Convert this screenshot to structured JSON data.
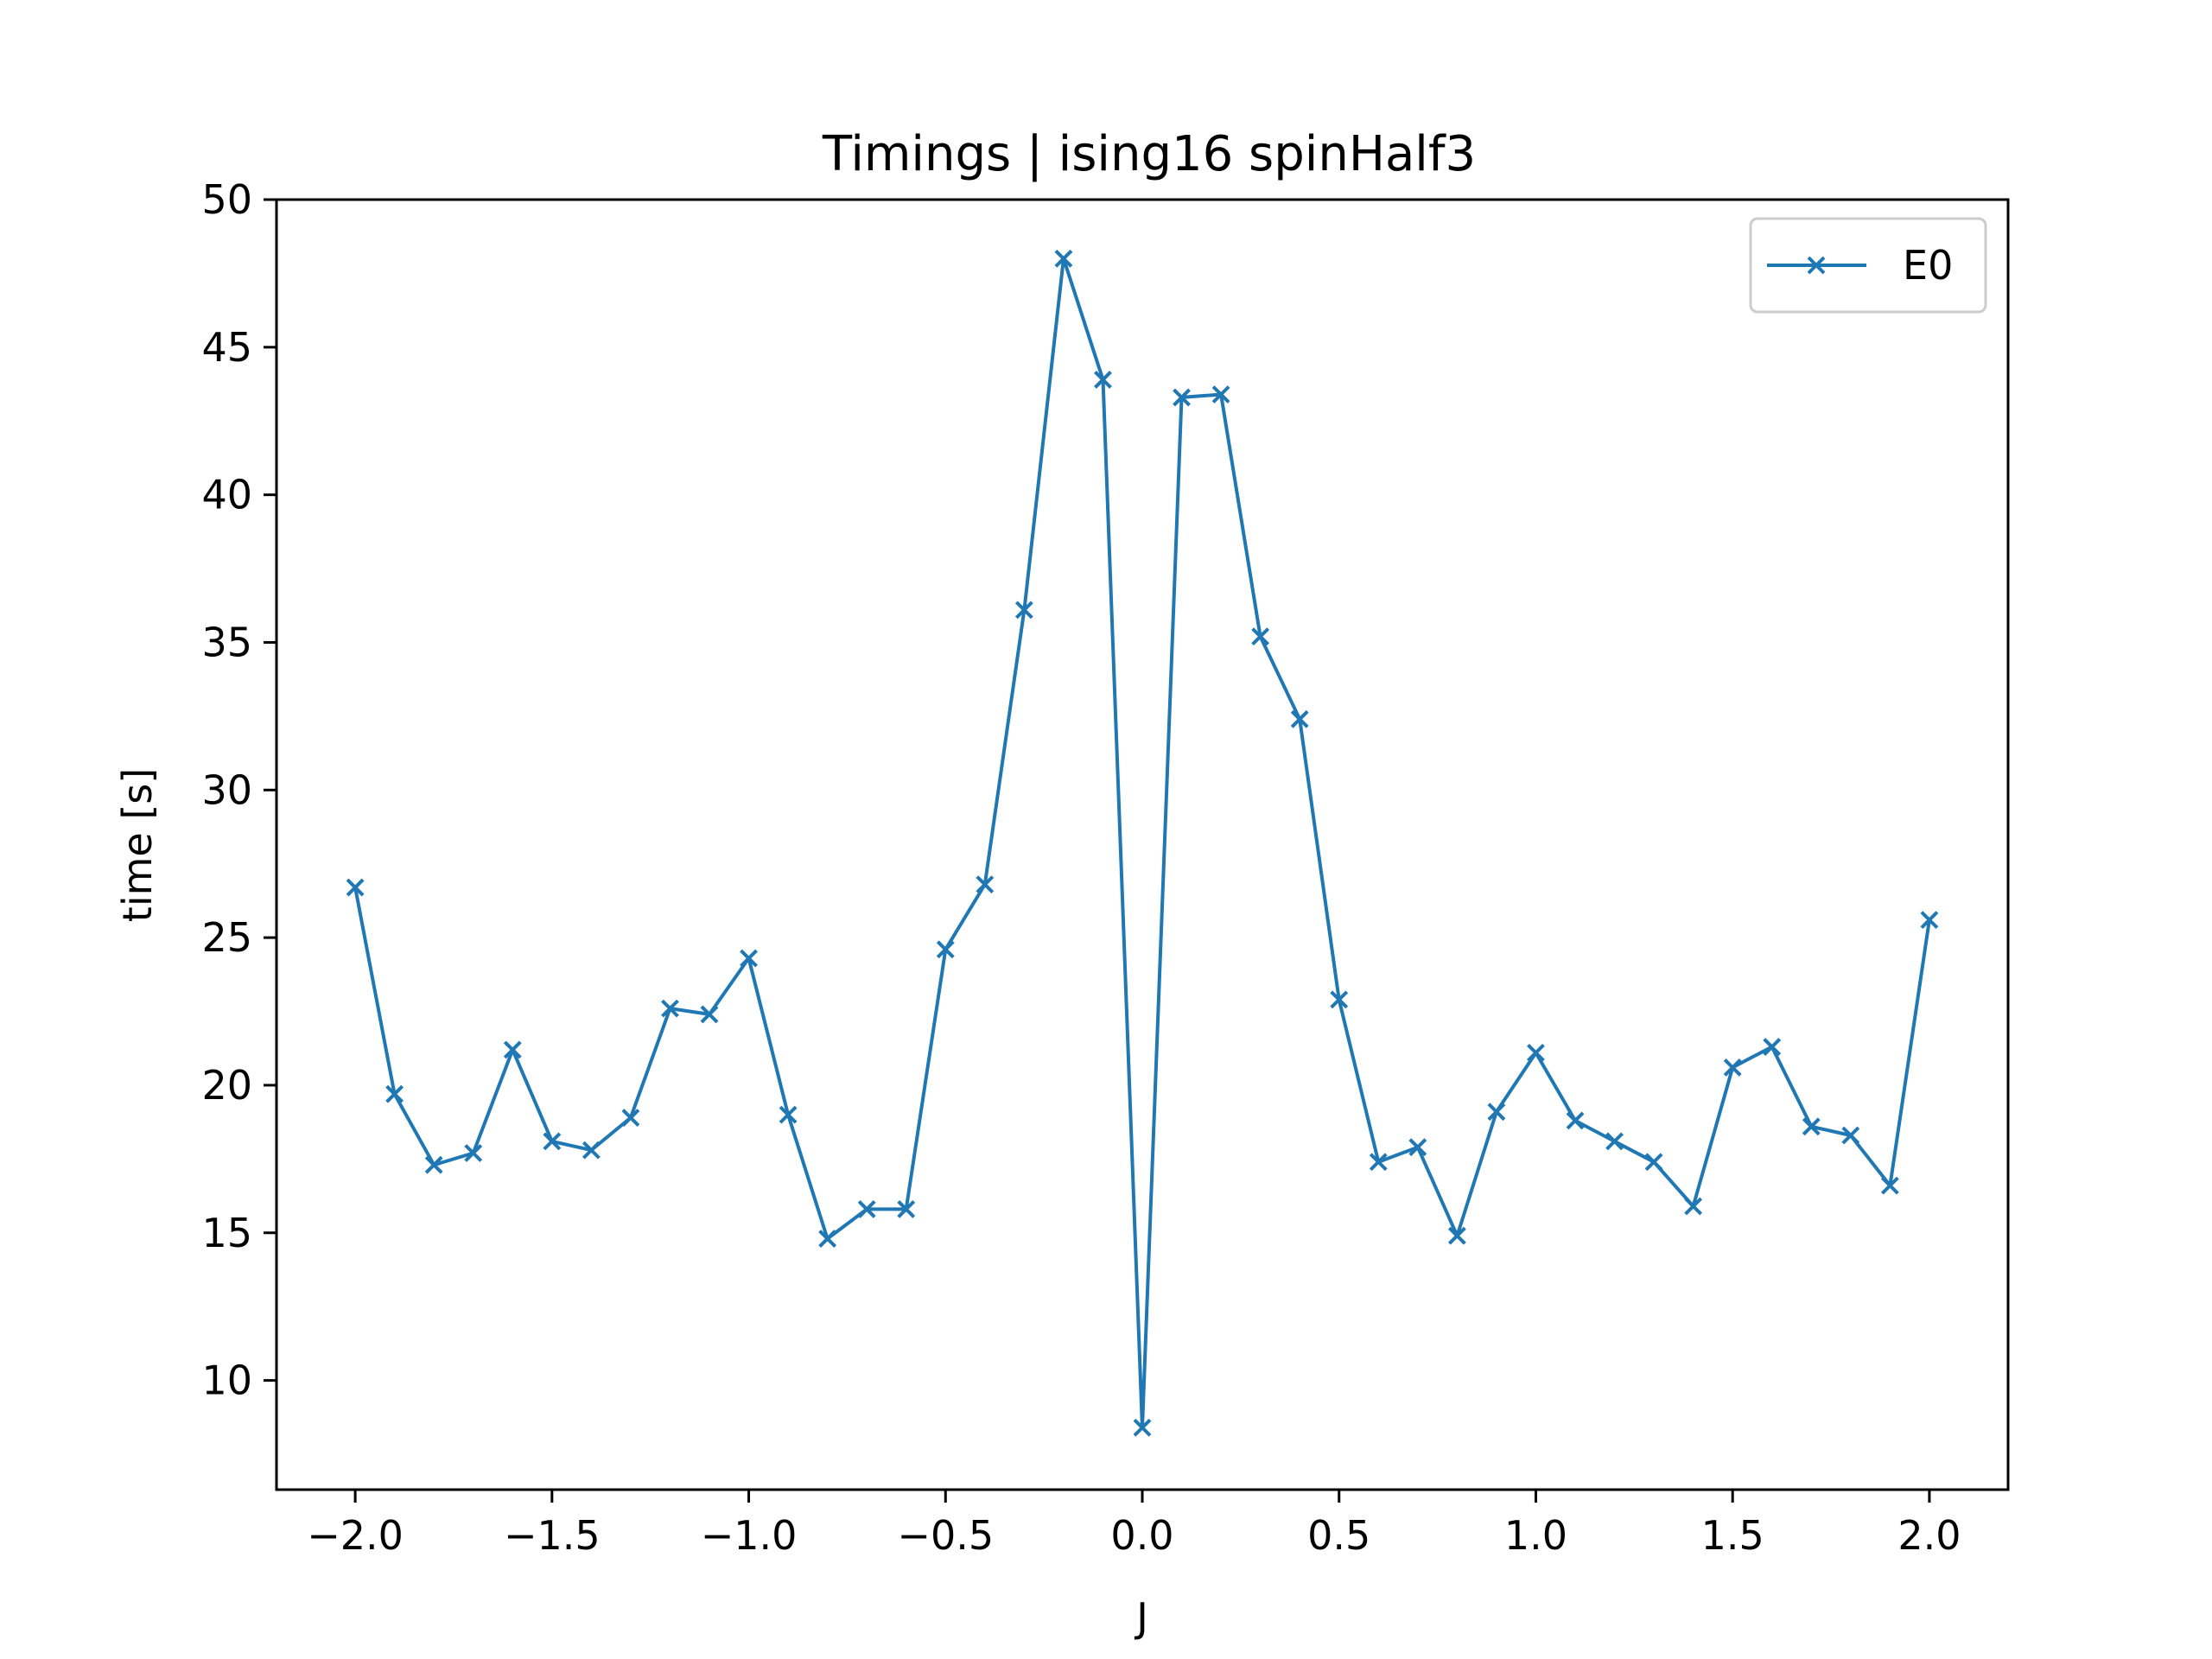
{
  "chart_data": {
    "type": "line",
    "title": "Timings | ising16 spinHalf3",
    "xlabel": "J",
    "ylabel": "time [s]",
    "xlim": [
      -2.2,
      2.2
    ],
    "ylim": [
      6.3,
      50
    ],
    "xticks": [
      -2.0,
      -1.5,
      -1.0,
      -0.5,
      0.0,
      0.5,
      1.0,
      1.5,
      2.0
    ],
    "xtick_labels": [
      "−2.0",
      "−1.5",
      "−1.0",
      "−0.5",
      "0.0",
      "0.5",
      "1.0",
      "1.5",
      "2.0"
    ],
    "yticks": [
      10,
      15,
      20,
      25,
      30,
      35,
      40,
      45,
      50
    ],
    "ytick_labels": [
      "10",
      "15",
      "20",
      "25",
      "30",
      "35",
      "40",
      "45",
      "50"
    ],
    "grid": false,
    "legend_position": "top-right",
    "series": [
      {
        "name": "E0",
        "color": "#1f77b4",
        "marker": "x",
        "x": [
          -2.0,
          -1.9,
          -1.8,
          -1.7,
          -1.6,
          -1.5,
          -1.4,
          -1.3,
          -1.2,
          -1.1,
          -1.0,
          -0.9,
          -0.8,
          -0.7,
          -0.6,
          -0.5,
          -0.4,
          -0.3,
          -0.2,
          -0.1,
          0.0,
          0.1,
          0.2,
          0.3,
          0.4,
          0.5,
          0.6,
          0.7,
          0.8,
          0.9,
          1.0,
          1.1,
          1.2,
          1.3,
          1.4,
          1.5,
          1.6,
          1.7,
          1.8,
          1.9,
          2.0
        ],
        "y": [
          26.7,
          19.7,
          17.3,
          17.7,
          21.2,
          18.1,
          17.8,
          18.9,
          22.6,
          22.4,
          24.3,
          19.0,
          14.8,
          15.8,
          15.8,
          24.6,
          26.8,
          36.1,
          48.0,
          43.9,
          8.4,
          43.3,
          43.4,
          35.2,
          32.4,
          22.9,
          17.4,
          17.9,
          14.9,
          19.1,
          21.1,
          18.8,
          18.1,
          17.4,
          15.9,
          20.6,
          21.3,
          18.6,
          18.3,
          16.6,
          25.6
        ]
      }
    ]
  }
}
